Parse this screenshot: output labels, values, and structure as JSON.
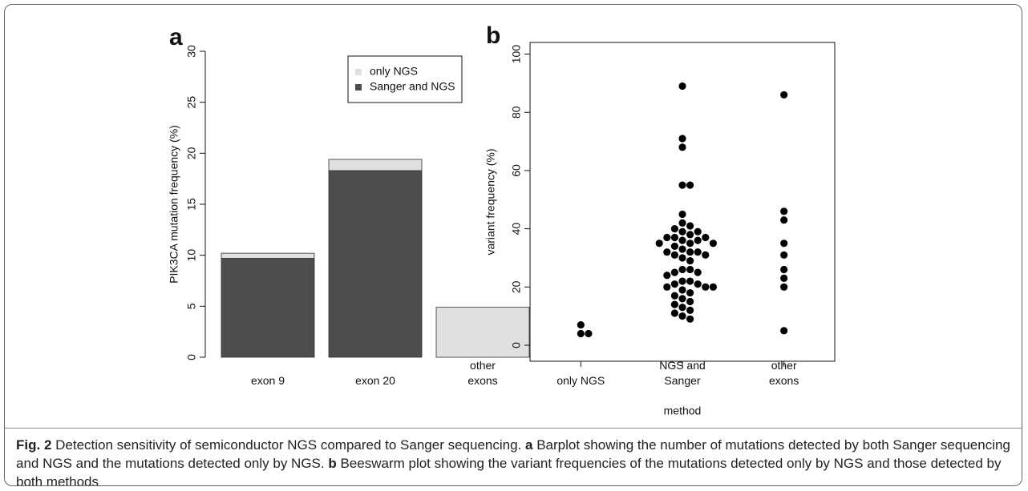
{
  "chart_data": [
    {
      "type": "stacked-bar",
      "panel": "a",
      "ylabel": "PIK3CA mutation frequency (%)",
      "categories": [
        "exon 9",
        "exon 20",
        "other\nexons"
      ],
      "series": [
        {
          "name": "Sanger and NGS",
          "color": "#4d4d4d",
          "values": [
            9.7,
            18.3,
            0
          ]
        },
        {
          "name": "only NGS",
          "color": "#e0e0e0",
          "values": [
            0.5,
            1.1,
            4.9
          ]
        }
      ],
      "ylim": [
        0,
        30
      ],
      "yticks": [
        0,
        5,
        10,
        15,
        20,
        25,
        30
      ]
    },
    {
      "type": "beeswarm",
      "panel": "b",
      "xlabel": "method",
      "ylabel": "variant frequency (%)",
      "categories": [
        "only NGS",
        "NGS and\nSanger",
        "other\nexons"
      ],
      "color": "#000000",
      "values": [
        [
          7,
          4,
          4
        ],
        [
          89,
          71,
          68,
          55,
          55,
          45,
          42,
          41,
          40,
          39,
          39,
          38,
          37,
          37,
          37,
          36,
          36,
          35,
          35,
          35,
          34,
          33,
          32,
          32,
          32,
          31,
          31,
          30,
          29,
          26,
          26,
          25,
          25,
          24,
          22,
          22,
          21,
          21,
          20,
          20,
          20,
          19,
          18,
          17,
          16,
          15,
          14,
          13,
          12,
          11,
          10,
          9
        ],
        [
          86,
          46,
          43,
          35,
          31,
          26,
          23,
          20,
          5
        ]
      ],
      "ylim": [
        -5.5,
        104
      ],
      "yticks": [
        0,
        20,
        40,
        60,
        80,
        100
      ]
    }
  ],
  "caption": {
    "label": "Fig. 2",
    "intro": "Detection sensitivity of semiconductor NGS compared to Sanger sequencing.",
    "parts": [
      {
        "label": "a",
        "text": "Barplot showing the number of mutations detected by both Sanger sequencing and NGS and the mutations detected only by NGS."
      },
      {
        "label": "b",
        "text": "Beeswarm plot showing the variant frequencies of the mutations detected only by NGS and those detected by both methods"
      }
    ]
  }
}
